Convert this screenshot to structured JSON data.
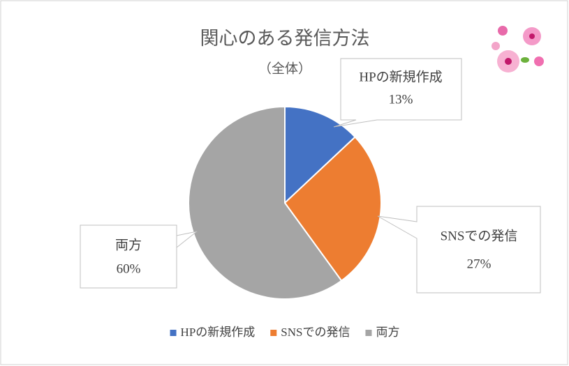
{
  "chart_data": {
    "type": "pie",
    "title": "関心のある発信方法",
    "subtitle": "（全体）",
    "categories": [
      "HPの新規作成",
      "SNSでの発信",
      "両方"
    ],
    "values": [
      13,
      27,
      60
    ],
    "value_labels": [
      "13%",
      "27%",
      "60%"
    ],
    "colors": [
      "#4472c4",
      "#ed7d31",
      "#a5a5a5"
    ],
    "legend": "bottom"
  }
}
